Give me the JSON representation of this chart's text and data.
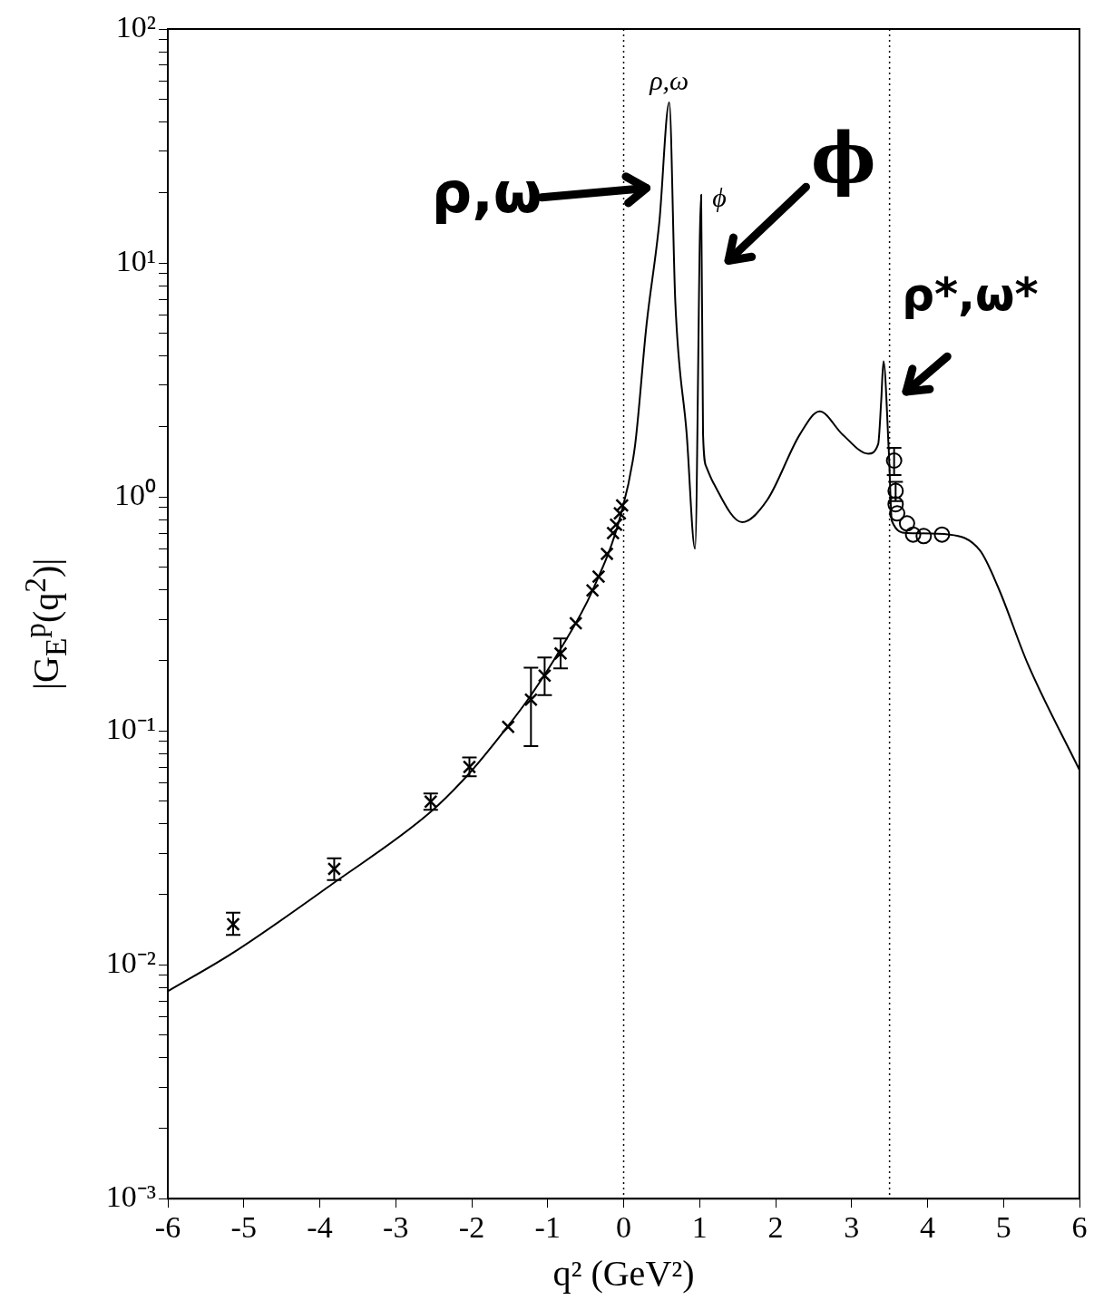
{
  "chart_data": {
    "type": "line",
    "xlabel": "q² (GeV²)",
    "ylabel": "|G$_{E}$$^{p}$(q$^{2}$)|",
    "log": "y",
    "grid": false,
    "legend": false,
    "xlim": [
      -6,
      6
    ],
    "xticks": [
      -6,
      -5,
      -4,
      -3,
      -2,
      -1,
      0,
      1,
      2,
      3,
      4,
      5,
      6
    ],
    "ylim": [
      0.001,
      100
    ],
    "yticks": [
      {
        "value": 0.001,
        "label": "10⁻³"
      },
      {
        "value": 0.002,
        "label": null
      },
      {
        "value": 0.003,
        "label": null
      },
      {
        "value": 0.004,
        "label": null
      },
      {
        "value": 0.005,
        "label": null
      },
      {
        "value": 0.006,
        "label": null
      },
      {
        "value": 0.007,
        "label": null
      },
      {
        "value": 0.008,
        "label": null
      },
      {
        "value": 0.009,
        "label": null
      },
      {
        "value": 0.01,
        "label": "10⁻²"
      },
      {
        "value": 0.02,
        "label": null
      },
      {
        "value": 0.03,
        "label": null
      },
      {
        "value": 0.04,
        "label": null
      },
      {
        "value": 0.05,
        "label": null
      },
      {
        "value": 0.06,
        "label": null
      },
      {
        "value": 0.07,
        "label": null
      },
      {
        "value": 0.08,
        "label": null
      },
      {
        "value": 0.09,
        "label": null
      },
      {
        "value": 0.1,
        "label": "10⁻¹"
      },
      {
        "value": 0.2,
        "label": null
      },
      {
        "value": 0.3,
        "label": null
      },
      {
        "value": 0.4,
        "label": null
      },
      {
        "value": 0.5,
        "label": null
      },
      {
        "value": 0.6,
        "label": null
      },
      {
        "value": 0.7,
        "label": null
      },
      {
        "value": 0.8,
        "label": null
      },
      {
        "value": 0.9,
        "label": null
      },
      {
        "value": 1,
        "label": "10⁰"
      },
      {
        "value": 2,
        "label": null
      },
      {
        "value": 3,
        "label": null
      },
      {
        "value": 4,
        "label": null
      },
      {
        "value": 5,
        "label": null
      },
      {
        "value": 6,
        "label": null
      },
      {
        "value": 7,
        "label": null
      },
      {
        "value": 8,
        "label": null
      },
      {
        "value": 9,
        "label": null
      },
      {
        "value": 10,
        "label": "10¹"
      },
      {
        "value": 20,
        "label": null
      },
      {
        "value": 30,
        "label": null
      },
      {
        "value": 40,
        "label": null
      },
      {
        "value": 50,
        "label": null
      },
      {
        "value": 60,
        "label": null
      },
      {
        "value": 70,
        "label": null
      },
      {
        "value": 80,
        "label": null
      },
      {
        "value": 90,
        "label": null
      },
      {
        "value": 100,
        "label": "10²"
      }
    ],
    "series": [
      {
        "type": "line",
        "color": "#000000",
        "marker": "none",
        "line_style": "solid",
        "x": [
          -6,
          -5.15,
          -3.83,
          -2.54,
          -2.01,
          -1.53,
          -1.24,
          -0.84,
          -0.41,
          -0.04,
          0.15,
          0.3,
          0.47,
          0.6,
          0.68,
          0.83,
          0.94,
          1.02,
          1.045,
          1.09,
          1.18,
          1.56,
          1.89,
          2.32,
          2.58,
          2.88,
          3.22,
          3.35,
          3.39,
          3.42,
          3.49,
          3.53,
          3.73,
          4.29,
          4.69,
          4.93,
          5.32,
          6
        ],
        "values": [
          0.0077,
          0.0112,
          0.0222,
          0.045,
          0.067,
          0.104,
          0.139,
          0.221,
          0.398,
          0.835,
          1.66,
          5.4,
          15,
          48.5,
          6.8,
          1.85,
          0.6,
          19.6,
          1.85,
          1.34,
          1.15,
          0.78,
          0.97,
          1.85,
          2.32,
          1.85,
          1.53,
          1.68,
          2.57,
          3.8,
          1.57,
          0.79,
          0.7,
          0.69,
          0.59,
          0.41,
          0.193,
          0.068
        ]
      },
      {
        "type": "scatter",
        "color": "#000000",
        "marker": "cross",
        "x": [
          -5.14,
          -3.81,
          -2.54,
          -2.03,
          -1.52,
          -1.22,
          -1.04,
          -0.83,
          -0.63,
          -0.41,
          -0.33,
          -0.22,
          -0.14,
          -0.1,
          -0.05,
          -0.02
        ],
        "values": [
          0.0149,
          0.0257,
          0.0498,
          0.07,
          0.104,
          0.136,
          0.172,
          0.214,
          0.288,
          0.398,
          0.456,
          0.571,
          0.7,
          0.76,
          0.85,
          0.92
        ],
        "errors": [
          [
            0.0134,
            0.0167
          ],
          [
            0.023,
            0.0285
          ],
          [
            0.046,
            0.054
          ],
          [
            0.064,
            0.077
          ],
          null,
          [
            0.086,
            0.186
          ],
          [
            0.142,
            0.206
          ],
          [
            0.185,
            0.248
          ],
          null,
          null,
          null,
          null,
          null,
          null,
          null,
          null
        ]
      },
      {
        "type": "scatter",
        "color": "#000000",
        "marker": "circle",
        "x": [
          3.56,
          3.58,
          3.58,
          3.6,
          3.73,
          3.81,
          3.95,
          4.19
        ],
        "values": [
          1.43,
          1.06,
          0.93,
          0.85,
          0.77,
          0.69,
          0.68,
          0.69
        ],
        "errors": [
          [
            1.24,
            1.62
          ],
          [
            0.96,
            1.16
          ],
          null,
          null,
          null,
          null,
          null,
          null
        ]
      }
    ],
    "ref_lines": [
      {
        "axis": "x",
        "value": 0,
        "color": "#000000",
        "line_style": "dotted"
      },
      {
        "axis": "x",
        "value": 3.5,
        "color": "#000000",
        "line_style": "dotted"
      }
    ],
    "annotations": [
      {
        "text": "ρ,ω",
        "x": 0.6,
        "y": 48.5
      },
      {
        "text": "ϕ",
        "x": 1.02,
        "y": 19.6
      },
      "ρ,ω",
      "ϕ",
      "ρ*,ω*"
    ]
  }
}
